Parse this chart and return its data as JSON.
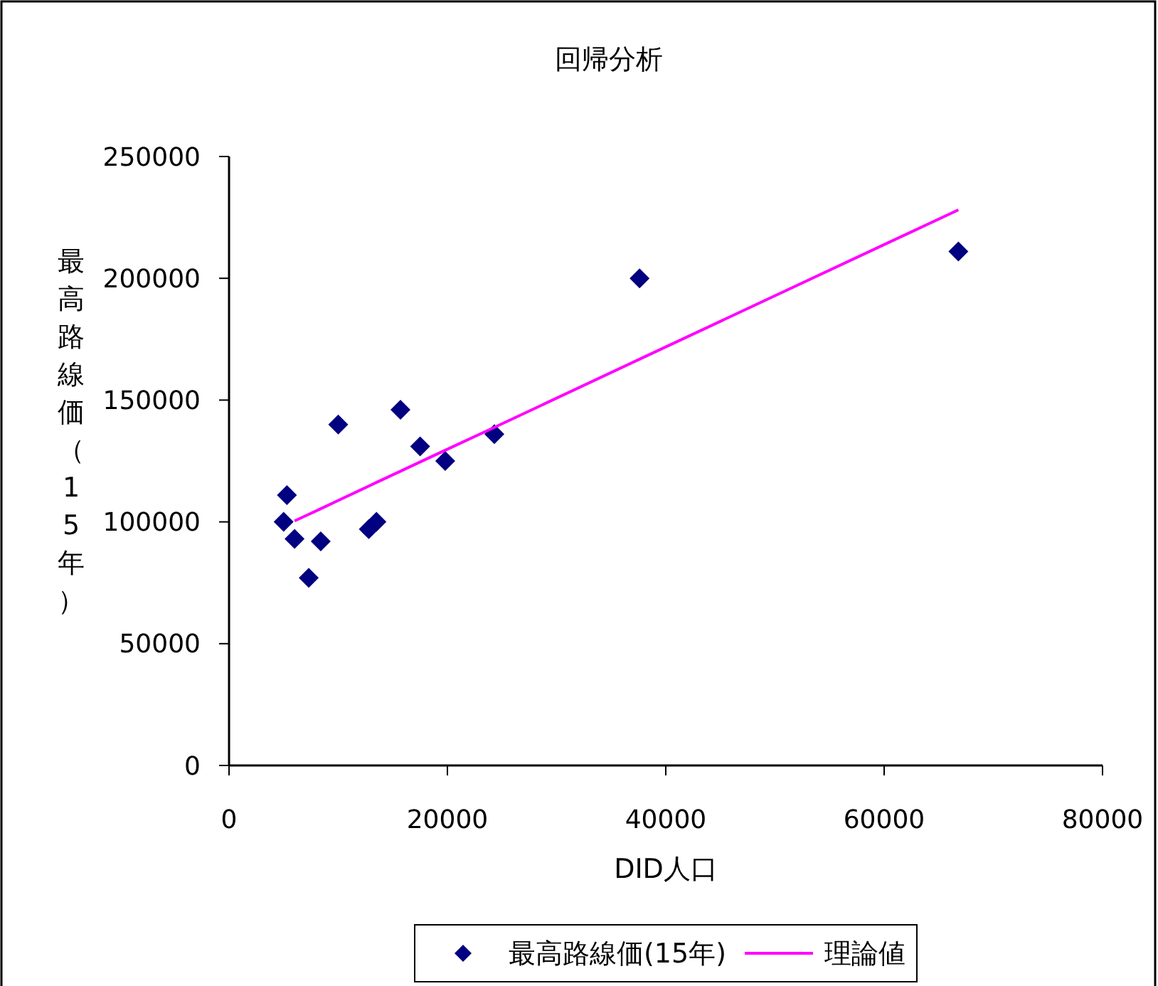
{
  "chart_data": {
    "type": "scatter",
    "title": "回帰分析",
    "xlabel": "DID人口",
    "ylabel": "最高路線価（15年）",
    "xlim": [
      0,
      80000
    ],
    "xticks": [
      0,
      20000,
      40000,
      60000,
      80000
    ],
    "ylim": [
      0,
      250000
    ],
    "yticks": [
      0,
      50000,
      100000,
      150000,
      200000,
      250000
    ],
    "grid": false,
    "legend": "bottom",
    "marker": "diamond",
    "series": [
      {
        "name": "最高路線価(15年)",
        "color": "#000080",
        "x": [
          5000,
          5300,
          6000,
          7300,
          8400,
          10000,
          12800,
          13500,
          15700,
          17500,
          19800,
          24300,
          37600,
          66800
        ],
        "values": [
          100000,
          111000,
          93000,
          77000,
          92000,
          140000,
          97000,
          100000,
          146000,
          131000,
          125000,
          136000,
          200000,
          211000
        ]
      },
      {
        "name": "理論値",
        "type": "line",
        "color": "#ff00ff",
        "marker": "none",
        "line_style": "solid",
        "x": [
          6000,
          7300,
          8400,
          10000,
          12800,
          13500,
          15700,
          17500,
          19800,
          24300,
          37600,
          66800
        ],
        "values": [
          100400,
          103100,
          105400,
          108800,
          114700,
          116200,
          120800,
          124600,
          129400,
          138800,
          166800,
          228100
        ]
      }
    ]
  }
}
